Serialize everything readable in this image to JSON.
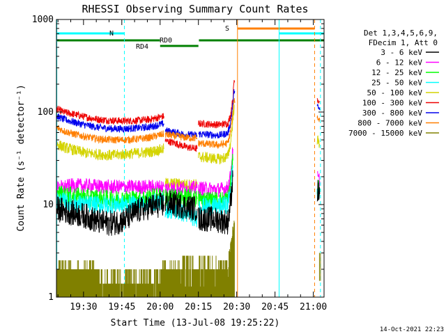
{
  "chart_data": {
    "type": "line",
    "title": "RHESSI Observing Summary Count Rates",
    "xlabel": "Start Time (13-Jul-08 19:25:22)",
    "ylabel": "Count Rate (s⁻¹ detector⁻¹)",
    "yscale": "log",
    "ylim": [
      1,
      1000
    ],
    "xlim_minutes": [
      19.4,
      124.2
    ],
    "x_ticks": [
      {
        "label": "19:30",
        "min": 30
      },
      {
        "label": "19:45",
        "min": 45
      },
      {
        "label": "20:00",
        "min": 60
      },
      {
        "label": "20:15",
        "min": 75
      },
      {
        "label": "20:30",
        "min": 90
      },
      {
        "label": "20:45",
        "min": 105
      },
      {
        "label": "21:00",
        "min": 120
      }
    ],
    "y_ticks": [
      {
        "label": "1",
        "v": 1
      },
      {
        "label": "10",
        "v": 10
      },
      {
        "label": "100",
        "v": 100
      },
      {
        "label": "1000",
        "v": 1000
      }
    ],
    "legend": {
      "placement": "top-right",
      "header": [
        "Det 1,3,4,5,6,9,",
        "FDecim 1, Att 0"
      ],
      "entries": [
        {
          "label": "3 - 6 keV",
          "color": "#000000"
        },
        {
          "label": "6 - 12 keV",
          "color": "#ff00ff"
        },
        {
          "label": "12 - 25 keV",
          "color": "#00ff00"
        },
        {
          "label": "25 - 50 keV",
          "color": "#00ffff"
        },
        {
          "label": "50 - 100 keV",
          "color": "#d4d400"
        },
        {
          "label": "100 - 300 keV",
          "color": "#ee0000"
        },
        {
          "label": "300 - 800 keV",
          "color": "#0000ee"
        },
        {
          "label": "800 - 7000 keV",
          "color": "#ff7f00"
        },
        {
          "label": "7000 - 15000 keV",
          "color": "#808000"
        }
      ]
    },
    "series": [
      {
        "color": "#ee0000",
        "noise": 0.04,
        "segments": [
          [
            [
              19.6,
              108
            ],
            [
              22,
              100
            ],
            [
              26,
              95
            ],
            [
              31,
              88
            ],
            [
              36,
              83
            ],
            [
              41,
              81
            ],
            [
              46,
              80
            ],
            [
              51,
              81
            ],
            [
              56,
              83
            ],
            [
              61.5,
              90
            ]
          ],
          [
            [
              62,
              49
            ],
            [
              66,
              46
            ],
            [
              70,
              42
            ],
            [
              74.5,
              40
            ]
          ],
          [
            [
              75,
              75
            ],
            [
              79,
              74
            ],
            [
              83,
              73
            ],
            [
              86.5,
              75
            ],
            [
              87.5,
              90
            ],
            [
              88.5,
              140
            ],
            [
              89,
              220
            ],
            [
              89.3,
              210
            ]
          ],
          [
            [
              121.5,
              140
            ],
            [
              122.5,
              130
            ]
          ]
        ]
      },
      {
        "color": "#0000ee",
        "noise": 0.04,
        "segments": [
          [
            [
              19.6,
              90
            ],
            [
              22,
              84
            ],
            [
              26,
              78
            ],
            [
              31,
              72
            ],
            [
              36,
              68
            ],
            [
              41,
              66
            ],
            [
              46,
              66
            ],
            [
              51,
              67
            ],
            [
              56,
              69
            ],
            [
              61.5,
              75
            ]
          ],
          [
            [
              62,
              63
            ],
            [
              66,
              60
            ],
            [
              70,
              57
            ],
            [
              74.5,
              56
            ]
          ],
          [
            [
              75,
              58
            ],
            [
              79,
              57
            ],
            [
              83,
              56
            ],
            [
              86.5,
              59
            ],
            [
              87.5,
              75
            ],
            [
              88.5,
              120
            ],
            [
              89,
              175
            ],
            [
              89.3,
              165
            ]
          ],
          [
            [
              121.5,
              115
            ],
            [
              122.5,
              105
            ]
          ]
        ]
      },
      {
        "color": "#ff7f00",
        "noise": 0.04,
        "segments": [
          [
            [
              19.6,
              68
            ],
            [
              22,
              63
            ],
            [
              26,
              58
            ],
            [
              31,
              54
            ],
            [
              36,
              51
            ],
            [
              41,
              50
            ],
            [
              46,
              50
            ],
            [
              51,
              51
            ],
            [
              56,
              53
            ],
            [
              61.5,
              58
            ]
          ],
          [
            [
              62,
              57
            ],
            [
              66,
              55
            ],
            [
              70,
              53
            ],
            [
              74.5,
              52
            ]
          ],
          [
            [
              75,
              46
            ],
            [
              79,
              45
            ],
            [
              83,
              44
            ],
            [
              86.5,
              46
            ],
            [
              87.5,
              60
            ],
            [
              88.5,
              95
            ],
            [
              89,
              140
            ],
            [
              89.3,
              130
            ]
          ],
          [
            [
              121.5,
              88
            ],
            [
              122.5,
              82
            ]
          ]
        ]
      },
      {
        "color": "#d4d400",
        "noise": 0.06,
        "segments": [
          [
            [
              19.6,
              45
            ],
            [
              22,
              42
            ],
            [
              26,
              39
            ],
            [
              31,
              36
            ],
            [
              36,
              35
            ],
            [
              41,
              34
            ],
            [
              46,
              35
            ],
            [
              51,
              36
            ],
            [
              56,
              37
            ],
            [
              61.5,
              40
            ]
          ],
          [
            [
              62,
              17
            ],
            [
              66,
              17
            ],
            [
              70,
              16.5
            ],
            [
              74.5,
              16.5
            ]
          ],
          [
            [
              75,
              33
            ],
            [
              79,
              32
            ],
            [
              83,
              31
            ],
            [
              86.5,
              33
            ],
            [
              87.5,
              45
            ],
            [
              88.5,
              80
            ],
            [
              89,
              120
            ]
          ],
          [
            [
              121.5,
              50
            ],
            [
              122.5,
              45
            ]
          ]
        ]
      },
      {
        "color": "#ff00ff",
        "noise": 0.08,
        "segments": [
          [
            [
              19.6,
              15
            ],
            [
              25,
              16
            ],
            [
              31,
              16
            ],
            [
              41,
              15.5
            ],
            [
              51,
              15.5
            ],
            [
              56,
              15.5
            ],
            [
              61.5,
              15.5
            ]
          ],
          [
            [
              62,
              15
            ],
            [
              70,
              15
            ],
            [
              74.5,
              15
            ]
          ],
          [
            [
              75,
              15
            ],
            [
              83,
              14.5
            ],
            [
              86.5,
              15
            ],
            [
              87.5,
              20
            ],
            [
              88.5,
              40
            ]
          ],
          [
            [
              121.5,
              20
            ],
            [
              122.5,
              18
            ]
          ]
        ]
      },
      {
        "color": "#00ff00",
        "noise": 0.1,
        "segments": [
          [
            [
              19.6,
              13
            ],
            [
              25,
              12.5
            ],
            [
              31,
              12
            ],
            [
              41,
              11.5
            ],
            [
              51,
              11.5
            ],
            [
              56,
              12
            ],
            [
              61.5,
              12.5
            ]
          ],
          [
            [
              62,
              12
            ],
            [
              70,
              12
            ],
            [
              74.5,
              11.5
            ]
          ],
          [
            [
              75,
              11.5
            ],
            [
              83,
              11
            ],
            [
              86.5,
              11.5
            ],
            [
              87.5,
              16
            ],
            [
              88.5,
              30
            ]
          ],
          [
            [
              121.5,
              16
            ],
            [
              122.5,
              15
            ]
          ]
        ]
      },
      {
        "color": "#00ffff",
        "noise": 0.1,
        "segments": [
          [
            [
              19.6,
              11
            ],
            [
              25,
              10.5
            ],
            [
              31,
              10
            ],
            [
              41,
              10
            ],
            [
              51,
              10
            ],
            [
              56,
              10.5
            ],
            [
              61.5,
              11
            ]
          ],
          [
            [
              62,
              9
            ],
            [
              70,
              8
            ],
            [
              74.5,
              7
            ]
          ],
          [
            [
              75,
              9.5
            ],
            [
              83,
              9.5
            ],
            [
              86.5,
              10
            ],
            [
              87.5,
              14
            ],
            [
              88.5,
              25
            ]
          ],
          [
            [
              121.5,
              14
            ],
            [
              122.5,
              13
            ]
          ]
        ]
      },
      {
        "color": "#000000",
        "noise": 0.14,
        "segments": [
          [
            [
              19.6,
              9
            ],
            [
              25,
              8.2
            ],
            [
              31,
              7.5
            ],
            [
              36,
              6.5
            ],
            [
              41,
              6.3
            ],
            [
              46,
              6.8
            ],
            [
              51,
              8.5
            ],
            [
              56,
              9.5
            ],
            [
              61.5,
              10
            ]
          ],
          [
            [
              62,
              10.5
            ],
            [
              70,
              9.5
            ],
            [
              74.5,
              9
            ]
          ],
          [
            [
              75,
              7
            ],
            [
              80,
              7
            ],
            [
              86.5,
              6.5
            ],
            [
              87.5,
              10
            ],
            [
              88.5,
              20
            ]
          ],
          [
            [
              121.5,
              14
            ],
            [
              122.5,
              13
            ]
          ]
        ]
      }
    ],
    "olive_band": {
      "color": "#808000",
      "start": 19.5,
      "end": 89.2,
      "flare_end": 122.8
    },
    "vertical_markers": [
      {
        "min": 19.55,
        "color": "#00ffff",
        "style": "solid"
      },
      {
        "min": 46.0,
        "color": "#00ffff",
        "style": "dashed"
      },
      {
        "min": 90.3,
        "color": "#ff7f00",
        "style": "solid"
      },
      {
        "min": 106.6,
        "color": "#00ffff",
        "style": "solid"
      },
      {
        "min": 120.5,
        "color": "#ff7f00",
        "style": "dashed"
      },
      {
        "min": 122.8,
        "color": "#00ffff",
        "style": "dashed"
      }
    ],
    "state_bars": [
      {
        "label": "N",
        "color": "#00ffff",
        "ranges": [
          [
            19.5,
            46.0
          ],
          [
            106.6,
            124.1
          ]
        ]
      },
      {
        "label": "S",
        "color": "#ff7f00",
        "ranges": [
          [
            90.3,
            120.5
          ]
        ]
      },
      {
        "label": "RD0",
        "color": "#008000",
        "ranges": [
          [
            19.5,
            59.9
          ],
          [
            75.2,
            124.1
          ]
        ]
      },
      {
        "label": "RD4",
        "color": "#008000",
        "ranges": [
          [
            60.0,
            75.0
          ]
        ]
      }
    ],
    "timestamp": "14-Oct-2021 22:23"
  }
}
